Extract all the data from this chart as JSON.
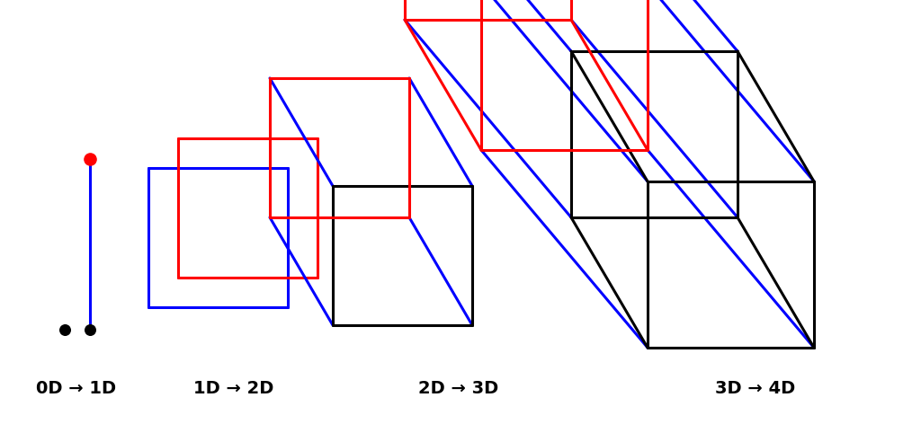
{
  "bg_color": "#ffffff",
  "label_fontsize": 14,
  "label_fontweight": "bold",
  "labels": [
    "0D → 1D",
    "1D → 2D",
    "2D → 3D",
    "3D → 4D"
  ],
  "lw": 2.2
}
